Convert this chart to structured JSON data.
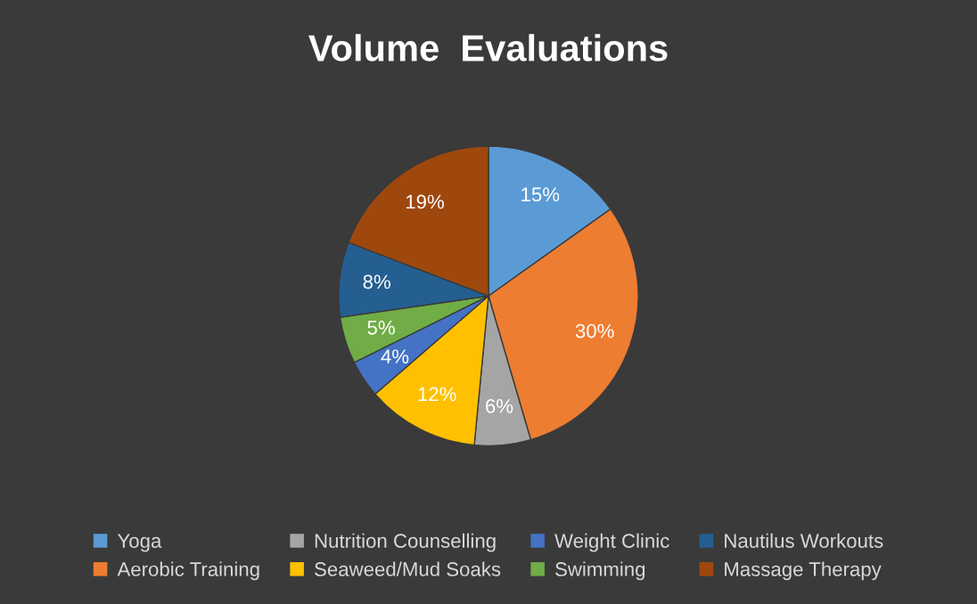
{
  "chart_data": {
    "type": "pie",
    "title": "Volume  Evaluations",
    "categories": [
      "Yoga",
      "Aerobic Training",
      "Nutrition Counselling",
      "Seaweed/Mud Soaks",
      "Weight Clinic",
      "Swimming",
      "Nautilus Workouts",
      "Massage Therapy"
    ],
    "values": [
      15,
      30,
      6,
      12,
      4,
      5,
      8,
      19
    ],
    "value_labels": [
      "15%",
      "30%",
      "6%",
      "12%",
      "4%",
      "5%",
      "8%",
      "19%"
    ],
    "colors": [
      "#5b9bd5",
      "#ed7d31",
      "#a5a5a5",
      "#ffc000",
      "#4472c4",
      "#70ad47",
      "#255e91",
      "#9e480e"
    ],
    "legend": "bottom"
  }
}
